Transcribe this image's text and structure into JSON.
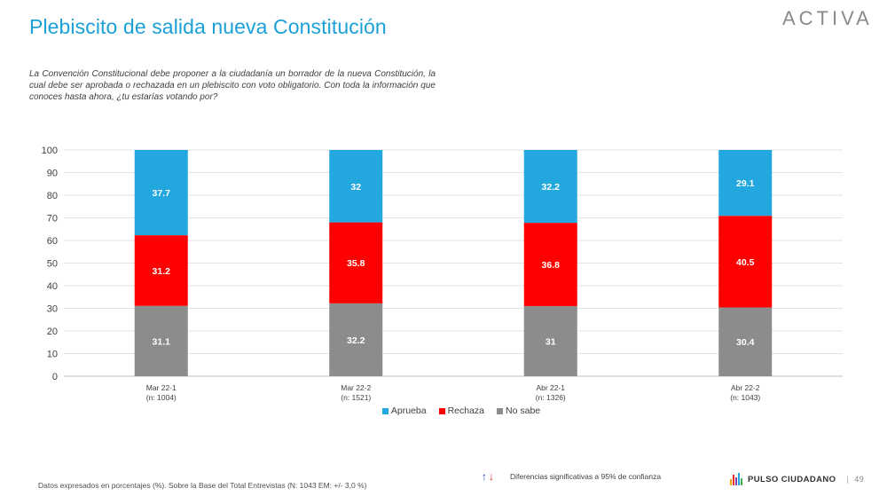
{
  "header": {
    "title": "Plebiscito de salida nueva Constitución",
    "brand": "ACTIVA"
  },
  "question": "La Convención Constitucional debe proponer a la ciudadanía un borrador de la nueva Constitución, la cual debe ser aprobada o rechazada en un plebiscito con voto obligatorio. Con toda la información que conoces hasta ahora, ¿tu estarías votando por?",
  "chart_data": {
    "type": "bar",
    "stacked": true,
    "categories": [
      "Mar 22-1",
      "Mar 22-2",
      "Abr 22-1",
      "Abr 22-2"
    ],
    "category_sublabels": [
      "(n: 1004)",
      "(n: 1521)",
      "(n: 1326)",
      "(n: 1043)"
    ],
    "series": [
      {
        "name": "No sabe",
        "color": "#8c8c8c",
        "values": [
          31.1,
          32.2,
          31,
          30.4
        ]
      },
      {
        "name": "Rechaza",
        "color": "#ff0000",
        "values": [
          31.2,
          35.8,
          36.8,
          40.5
        ]
      },
      {
        "name": "Aprueba",
        "color": "#22a7df",
        "values": [
          37.7,
          32,
          32.2,
          29.1
        ]
      }
    ],
    "ylim": [
      0,
      100
    ],
    "yticks": [
      0,
      10,
      20,
      30,
      40,
      50,
      60,
      70,
      80,
      90,
      100
    ],
    "grid": true,
    "legend_order": [
      "Aprueba",
      "Rechaza",
      "No sabe"
    ],
    "legend_position": "bottom"
  },
  "footer": {
    "note": "Datos expresados en porcentajes (%). Sobre la Base del Total Entrevistas (N: 1043  EM: +/- 3,0 %)",
    "significance_text": "Diferencias  significativas a 95% de confianza",
    "arrow_up": "↑",
    "arrow_down": "↓",
    "pulso_label": "PULSO CIUDADANO",
    "separator": "|",
    "page_number": "49"
  },
  "colors": {
    "title": "#1ba1d8",
    "aprueba": "#22a7df",
    "rechaza": "#ff0000",
    "no_sabe": "#8c8c8c"
  }
}
